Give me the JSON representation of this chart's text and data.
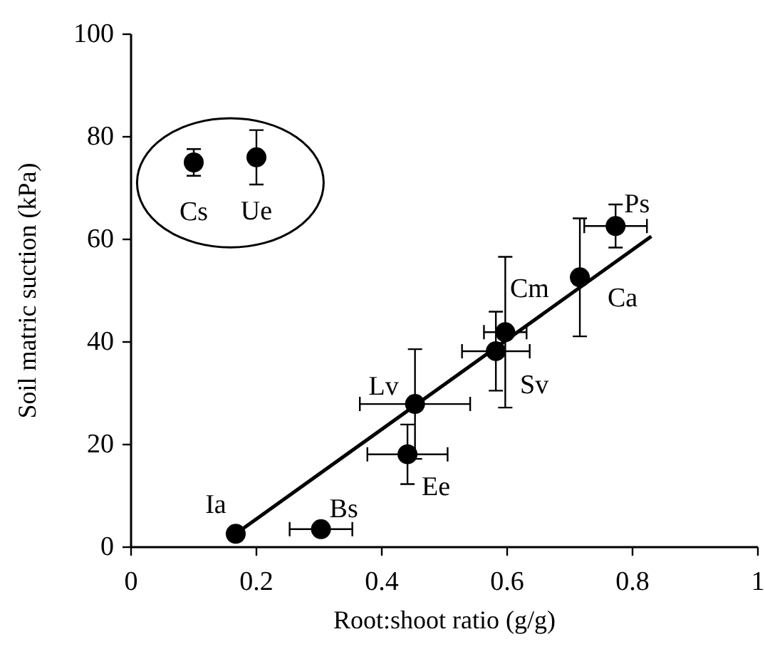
{
  "chart_data": {
    "type": "scatter",
    "xlabel": "Root:shoot ratio (g/g)",
    "ylabel": "Soil matric suction (kPa)",
    "xlim": [
      0,
      1
    ],
    "ylim": [
      0,
      100
    ],
    "xticks": [
      0,
      0.2,
      0.4,
      0.6,
      0.8,
      1
    ],
    "yticks": [
      0,
      20,
      40,
      60,
      80,
      100
    ],
    "grid": false,
    "marker": "circle",
    "series": [
      {
        "color": "#000000",
        "x": [
          0.1,
          0.2,
          0.167,
          0.303,
          0.441,
          0.453,
          0.582,
          0.597,
          0.716,
          0.773
        ],
        "values": [
          75,
          76,
          2.6,
          3.5,
          18.1,
          27.9,
          38.2,
          41.9,
          52.6,
          62.6
        ],
        "errors": [
          2.6,
          5.3,
          null,
          null,
          5.8,
          10.7,
          7.7,
          14.7,
          11.5,
          4.2
        ],
        "xerrors": [
          null,
          null,
          null,
          0.05,
          0.064,
          0.088,
          0.054,
          0.034,
          null,
          0.05
        ]
      },
      {
        "type": "line",
        "color": "#000000",
        "x": [
          0.167,
          0.83
        ],
        "values": [
          2.6,
          60.6
        ],
        "line_style": "solid",
        "marker": "none"
      }
    ],
    "annotations": [
      {
        "text": "Cs",
        "x": 0.1,
        "y": 75
      },
      {
        "text": "Ue",
        "x": 0.2,
        "y": 76
      },
      {
        "text": "Ia",
        "x": 0.167,
        "y": 2.6
      },
      {
        "text": "Bs",
        "x": 0.303,
        "y": 3.5
      },
      {
        "text": "Ee",
        "x": 0.441,
        "y": 18.1
      },
      {
        "text": "Lv",
        "x": 0.453,
        "y": 27.9
      },
      {
        "text": "Sv",
        "x": 0.582,
        "y": 38.2
      },
      {
        "text": "Cm",
        "x": 0.597,
        "y": 41.9
      },
      {
        "text": "Ca",
        "x": 0.716,
        "y": 52.6
      },
      {
        "text": "Ps",
        "x": 0.773,
        "y": 62.6
      }
    ]
  }
}
